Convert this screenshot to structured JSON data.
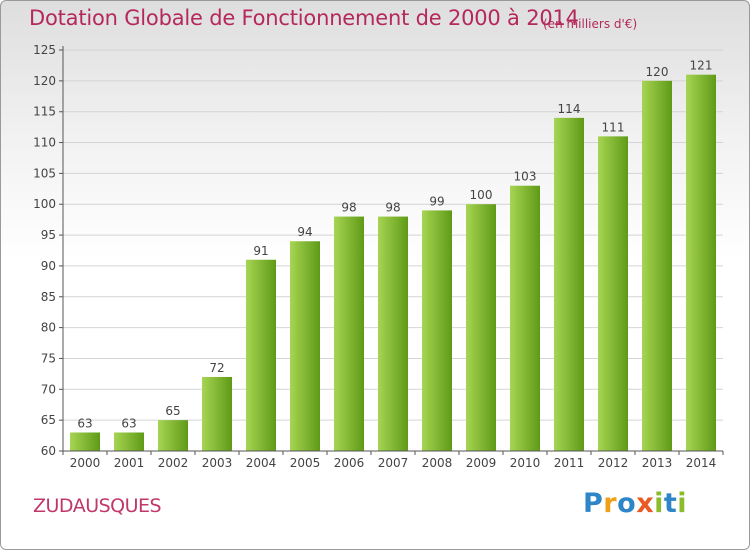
{
  "header": {
    "title": "Dotation Globale de Fonctionnement de 2000 à 2014",
    "subtitle": "(en milliers d'€)"
  },
  "footer": {
    "commune": "ZUDAUSQUES",
    "logo_letters": [
      "P",
      "r",
      "o",
      "x",
      "i",
      "t",
      "i"
    ],
    "logo_colors": [
      "#2e86c8",
      "#f0a11b",
      "#2e86c8",
      "#ea5a23",
      "#8cbc2b",
      "#2e86c8",
      "#8cbc2b"
    ]
  },
  "colors": {
    "bar_light": "#a6d553",
    "bar_dark": "#5f9a17",
    "title": "#b5285c",
    "axis": "#555555",
    "grid": "#d4d4d4"
  },
  "chart_data": {
    "type": "bar",
    "title": "Dotation Globale de Fonctionnement de 2000 à 2014",
    "subtitle": "(en milliers d'€)",
    "xlabel": "",
    "ylabel": "",
    "categories": [
      "2000",
      "2001",
      "2002",
      "2003",
      "2004",
      "2005",
      "2006",
      "2007",
      "2008",
      "2009",
      "2010",
      "2011",
      "2012",
      "2013",
      "2014"
    ],
    "values": [
      63,
      63,
      65,
      72,
      91,
      94,
      98,
      98,
      99,
      100,
      103,
      114,
      111,
      120,
      121
    ],
    "ylim": [
      60,
      125
    ],
    "yticks": [
      60,
      65,
      70,
      75,
      80,
      85,
      90,
      95,
      100,
      105,
      110,
      115,
      120,
      125
    ],
    "grid": true,
    "legend": "none"
  }
}
